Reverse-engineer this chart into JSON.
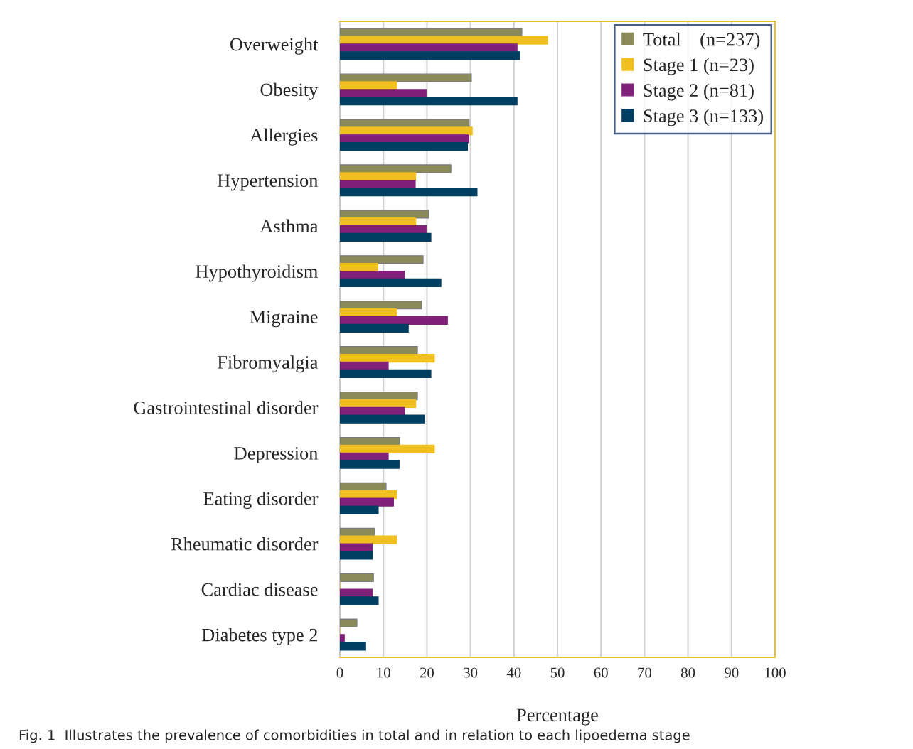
{
  "chart_data": {
    "type": "bar",
    "orientation": "horizontal",
    "xlabel": "Percentage",
    "categories": [
      "Overweight",
      "Obesity",
      "Allergies",
      "Hypertension",
      "Asthma",
      "Hypothyroidism",
      "Migraine",
      "Fibromyalgia",
      "Gastrointestinal disorder",
      "Depression",
      "Eating disorder",
      "Rheumatic disorder",
      "Cardiac disease",
      "Diabetes type 2"
    ],
    "series": [
      {
        "name": "Total    (n=237)",
        "color": "#8b8b5a",
        "values": [
          41.8,
          30.2,
          29.7,
          25.5,
          20.4,
          19.1,
          18.8,
          17.8,
          17.8,
          13.7,
          10.6,
          8.0,
          7.7,
          3.9
        ]
      },
      {
        "name": "Stage 1 (n=23)",
        "color": "#f0c020",
        "values": [
          47.7,
          13.0,
          30.4,
          17.4,
          17.4,
          8.7,
          13.0,
          21.7,
          17.4,
          21.7,
          13.0,
          13.0,
          0,
          0
        ]
      },
      {
        "name": "Stage 2 (n=81)",
        "color": "#80207a",
        "values": [
          40.7,
          19.8,
          29.6,
          17.3,
          19.8,
          14.8,
          24.7,
          11.1,
          14.8,
          11.1,
          12.3,
          7.4,
          7.4,
          1.0
        ]
      },
      {
        "name": "Stage 3 (n=133)",
        "color": "#003f62",
        "values": [
          41.3,
          40.7,
          29.3,
          31.5,
          20.9,
          23.2,
          15.7,
          20.9,
          19.4,
          13.6,
          8.8,
          7.4,
          8.8,
          5.9
        ]
      }
    ],
    "xlim": [
      0,
      100
    ],
    "xticks": [
      0,
      10,
      20,
      30,
      40,
      50,
      60,
      70,
      80,
      90,
      100
    ],
    "grid": "x",
    "legend": "top right",
    "annotations": [
      "Fig. 1  Illustrates the prevalence of comorbidities in total and in relation to each lipoedema stage"
    ]
  }
}
